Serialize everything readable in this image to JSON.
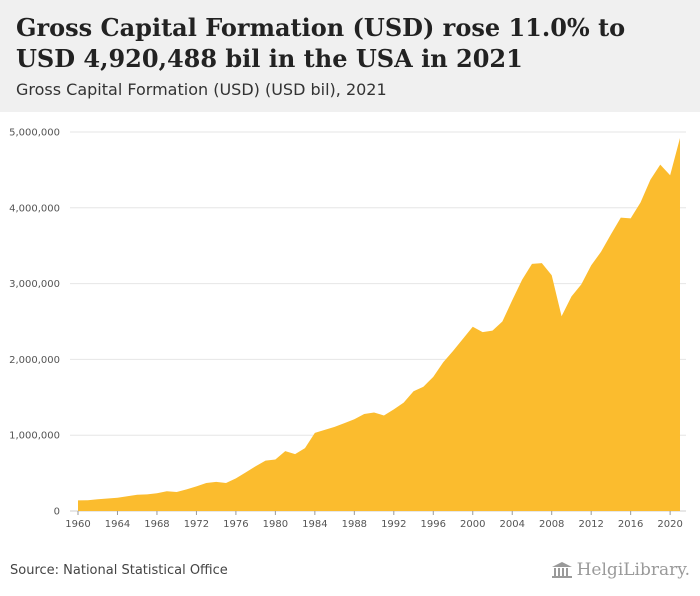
{
  "header": {
    "title": "Gross Capital Formation (USD) rose 11.0% to USD 4,920,488 bil in the USA in 2021",
    "subtitle": "Gross Capital Formation (USD) (USD bil), 2021"
  },
  "footer": {
    "source": "Source: National Statistical Office",
    "brand": "HelgiLibrary."
  },
  "colors": {
    "area": "#fbbc2e",
    "grid": "#e6e6e6",
    "header_bg": "#f0f0f0"
  },
  "chart_data": {
    "type": "area",
    "title": "Gross Capital Formation (USD) rose 11.0% to USD 4,920,488 bil in the USA in 2021",
    "subtitle": "Gross Capital Formation (USD) (USD bil), 2021",
    "xlabel": "",
    "ylabel": "",
    "x_ticks": [
      "1960",
      "1964",
      "1968",
      "1972",
      "1976",
      "1980",
      "1984",
      "1988",
      "1992",
      "1996",
      "2000",
      "2004",
      "2008",
      "2012",
      "2016",
      "2020"
    ],
    "y_ticks": [
      "0",
      "1,000,000",
      "2,000,000",
      "3,000,000",
      "4,000,000",
      "5,000,000"
    ],
    "ylim": [
      0,
      5000000
    ],
    "xlim": [
      1960,
      2021
    ],
    "grid": true,
    "legend": "none",
    "x": [
      1960,
      1961,
      1962,
      1963,
      1964,
      1965,
      1966,
      1967,
      1968,
      1969,
      1970,
      1971,
      1972,
      1973,
      1974,
      1975,
      1976,
      1977,
      1978,
      1979,
      1980,
      1981,
      1982,
      1983,
      1984,
      1985,
      1986,
      1987,
      1988,
      1989,
      1990,
      1991,
      1992,
      1993,
      1994,
      1995,
      1996,
      1997,
      1998,
      1999,
      2000,
      2001,
      2002,
      2003,
      2004,
      2005,
      2006,
      2007,
      2008,
      2009,
      2010,
      2011,
      2012,
      2013,
      2014,
      2015,
      2016,
      2017,
      2018,
      2019,
      2020,
      2021
    ],
    "values": [
      140000,
      142000,
      155000,
      165000,
      175000,
      195000,
      215000,
      220000,
      235000,
      260000,
      250000,
      285000,
      325000,
      370000,
      385000,
      370000,
      430000,
      510000,
      590000,
      665000,
      680000,
      790000,
      750000,
      830000,
      1030000,
      1070000,
      1110000,
      1160000,
      1210000,
      1280000,
      1300000,
      1260000,
      1340000,
      1430000,
      1580000,
      1640000,
      1770000,
      1960000,
      2110000,
      2270000,
      2430000,
      2360000,
      2380000,
      2500000,
      2780000,
      3050000,
      3260000,
      3270000,
      3110000,
      2570000,
      2830000,
      2990000,
      3240000,
      3420000,
      3650000,
      3870000,
      3860000,
      4070000,
      4370000,
      4570000,
      4430000,
      4920488
    ]
  }
}
